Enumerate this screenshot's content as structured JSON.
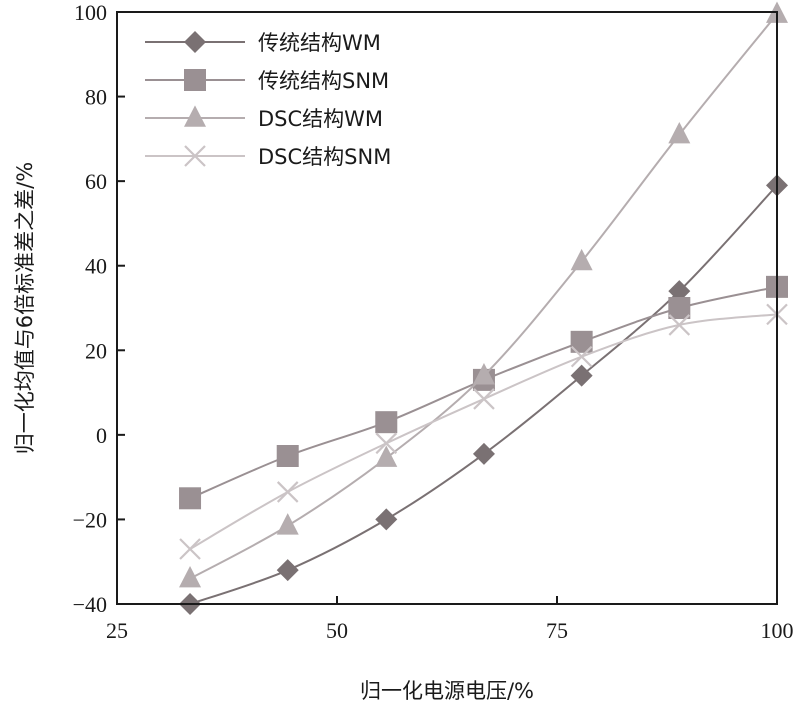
{
  "chart_data": {
    "type": "line",
    "xlabel": "归一化电源电压/%",
    "ylabel": "归一化均值与6倍标准差之差/%",
    "xlim": [
      25,
      100
    ],
    "ylim": [
      -40,
      100
    ],
    "xticks": [
      25,
      50,
      75,
      100
    ],
    "yticks": [
      -40,
      -20,
      0,
      20,
      40,
      60,
      80,
      100
    ],
    "xtick_labels": [
      "25",
      "50",
      "75",
      "100"
    ],
    "ytick_labels": [
      "−40",
      "−20",
      "0",
      "20",
      "40",
      "60",
      "80",
      "100"
    ],
    "grid": false,
    "legend_position": "top-left",
    "x": [
      33.3,
      44.4,
      55.6,
      66.7,
      77.8,
      88.9,
      100
    ],
    "series": [
      {
        "name": "传统结构WM",
        "marker": "diamond",
        "color": "#7a7173",
        "values": [
          -40,
          -32,
          -20,
          -4.5,
          14,
          34,
          59
        ]
      },
      {
        "name": "传统结构SNM",
        "marker": "square",
        "color": "#9a9093",
        "values": [
          -15,
          -5,
          3,
          13,
          22,
          30,
          35
        ]
      },
      {
        "name": "DSC结构WM",
        "marker": "triangle",
        "color": "#b5adaf",
        "values": [
          -34,
          -21.5,
          -5.5,
          14,
          41,
          71,
          99.5
        ]
      },
      {
        "name": "DSC结构SNM",
        "marker": "cross",
        "color": "#cbc4c6",
        "values": [
          -27,
          -13.5,
          -2,
          8.5,
          18.5,
          26,
          28.5
        ]
      }
    ]
  }
}
